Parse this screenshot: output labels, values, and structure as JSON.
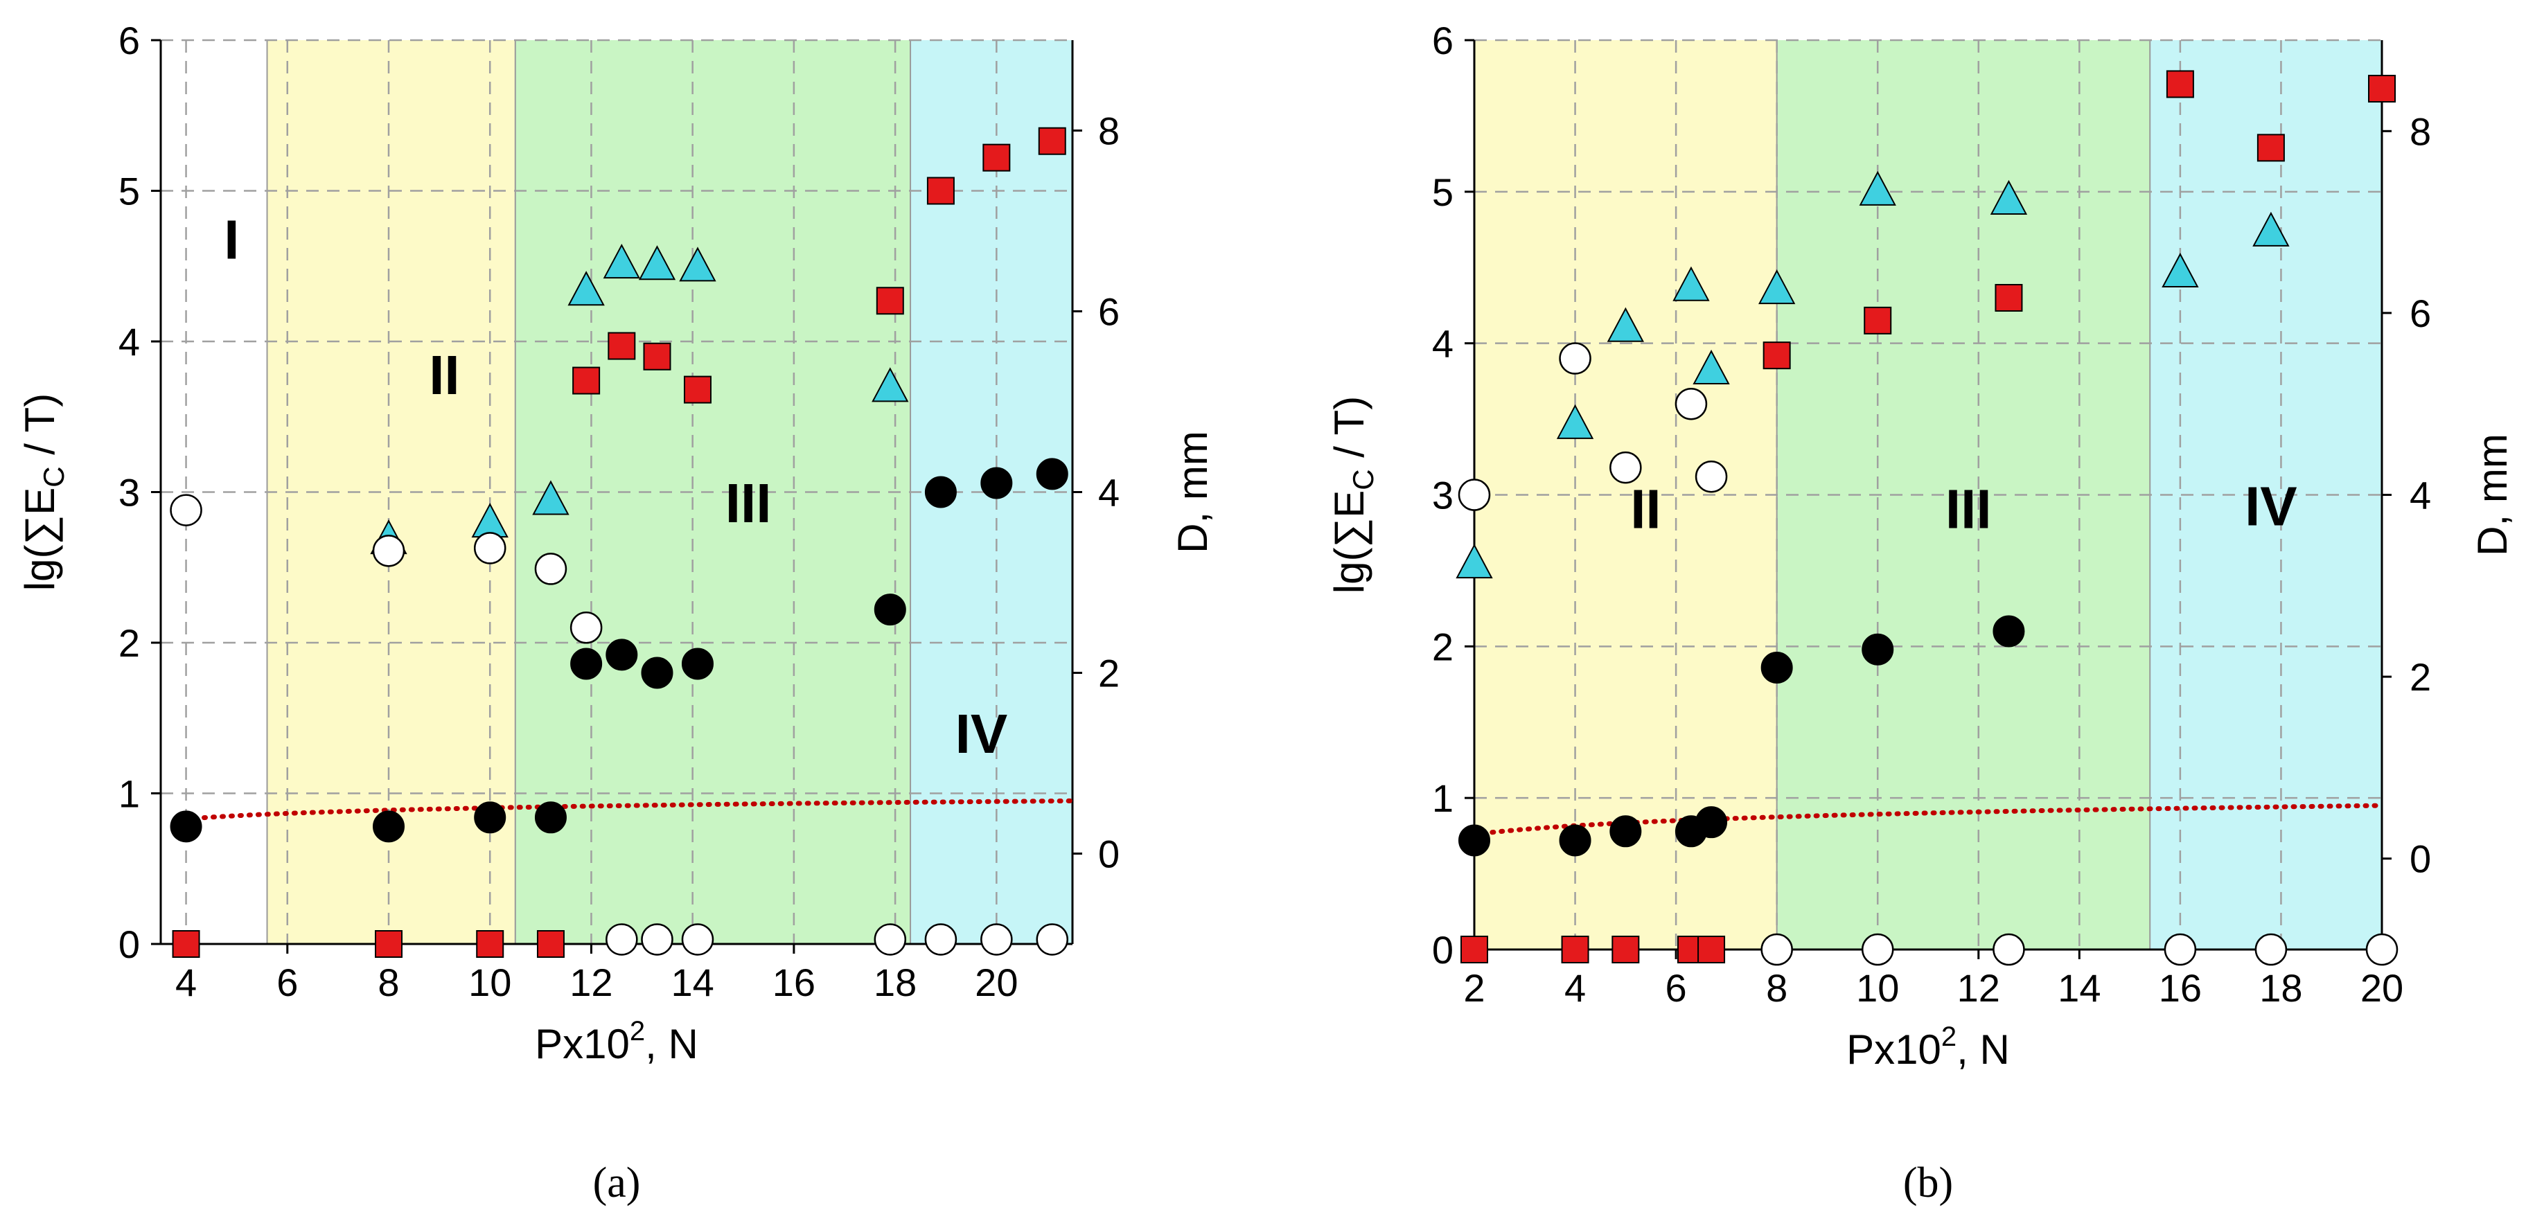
{
  "colors": {
    "zone_yellow": "#fdfac8",
    "zone_green": "#c9f5c4",
    "zone_cyan": "#c6f5f7",
    "square": "#e41a1c",
    "triangle": "#3fd0e0",
    "circle_filled": "#000000",
    "circle_open": "#ffffff",
    "trend": "#c00000"
  },
  "chart_data": [
    {
      "caption": "(a)",
      "type": "scatter",
      "xlabel": "Px10², N",
      "xlabel_base": "Px10",
      "xlabel_sup": "2",
      "xlabel_tail": ", N",
      "ylabel_left": "lg(∑E_C / T)",
      "ylabel_right": "D, mm",
      "xlim": [
        3.5,
        21.5
      ],
      "xticks": [
        4,
        6,
        8,
        10,
        12,
        14,
        16,
        18,
        20
      ],
      "ylim_left": [
        0,
        6
      ],
      "yticks_left": [
        0,
        1,
        2,
        3,
        4,
        5,
        6
      ],
      "ylim_right": [
        -1,
        9
      ],
      "yticks_right": [
        0,
        2,
        4,
        6,
        8
      ],
      "grid": true,
      "zones": [
        {
          "label": "I",
          "from": 3.5,
          "to": 5.6,
          "color": "none",
          "label_x": 4.9,
          "label_y": 4.55
        },
        {
          "label": "II",
          "from": 5.6,
          "to": 10.5,
          "color": "yellow",
          "label_x": 9.1,
          "label_y": 3.65
        },
        {
          "label": "III",
          "from": 10.5,
          "to": 18.3,
          "color": "green",
          "label_x": 15.1,
          "label_y": 2.8
        },
        {
          "label": "IV",
          "from": 18.3,
          "to": 21.5,
          "color": "cyan",
          "label_x": 19.7,
          "label_y": 1.27
        }
      ],
      "series": [
        {
          "marker": "square",
          "axis": "left",
          "x": [
            4,
            8,
            10,
            11.2,
            11.9,
            12.6,
            13.3,
            14.1,
            17.9,
            18.9,
            20,
            21.1
          ],
          "y": [
            0,
            0,
            0,
            0,
            3.74,
            3.97,
            3.9,
            3.68,
            4.27,
            5.0,
            5.22,
            5.33
          ]
        },
        {
          "marker": "triangle",
          "axis": "left",
          "x": [
            8,
            10,
            11.2,
            11.9,
            12.6,
            13.3,
            14.1,
            17.9
          ],
          "y": [
            2.68,
            2.79,
            2.94,
            4.33,
            4.51,
            4.5,
            4.49,
            3.69
          ]
        },
        {
          "marker": "circle-filled",
          "axis": "right",
          "x": [
            4,
            8,
            10,
            11.2,
            11.9,
            12.6,
            13.3,
            14.1,
            17.9,
            18.9,
            20,
            21.1
          ],
          "y": [
            0.3,
            0.3,
            0.4,
            0.4,
            2.1,
            2.2,
            2.0,
            2.1,
            2.7,
            4.0,
            4.1,
            4.2
          ]
        },
        {
          "marker": "circle-open",
          "axis": "right",
          "x": [
            4,
            8,
            10,
            11.2,
            11.9,
            12.6,
            13.3,
            14.1,
            17.9,
            18.9,
            20,
            21.1
          ],
          "y": [
            3.8,
            3.35,
            3.38,
            3.15,
            2.5,
            -0.95,
            -0.95,
            -0.95,
            -0.95,
            -0.95,
            -0.95,
            -0.95
          ]
        }
      ],
      "trend": {
        "axis": "left",
        "x": [
          4,
          21.5
        ],
        "y": [
          0.83,
          0.95
        ]
      }
    },
    {
      "caption": "(b)",
      "type": "scatter",
      "xlabel": "Px10², N",
      "xlabel_base": "Px10",
      "xlabel_sup": "2",
      "xlabel_tail": ", N",
      "ylabel_left": "lg(∑E_C / T)",
      "ylabel_right": "D, mm",
      "xlim": [
        2,
        20
      ],
      "xticks": [
        2,
        4,
        6,
        8,
        10,
        12,
        14,
        16,
        18,
        20
      ],
      "ylim_left": [
        0,
        6
      ],
      "yticks_left": [
        0,
        1,
        2,
        3,
        4,
        5,
        6
      ],
      "ylim_right": [
        -1,
        9
      ],
      "yticks_right": [
        0,
        2,
        4,
        6,
        8
      ],
      "grid": true,
      "zones": [
        {
          "label": "II",
          "from": 2,
          "to": 8,
          "color": "yellow",
          "label_x": 5.4,
          "label_y": 2.78
        },
        {
          "label": "III",
          "from": 8,
          "to": 15.4,
          "color": "green",
          "label_x": 11.8,
          "label_y": 2.78
        },
        {
          "label": "IV",
          "from": 15.4,
          "to": 20,
          "color": "cyan",
          "label_x": 17.8,
          "label_y": 2.8
        }
      ],
      "series": [
        {
          "marker": "square",
          "axis": "left",
          "x": [
            2,
            4,
            5,
            6.3,
            6.7,
            8,
            10,
            12.6,
            16,
            17.8,
            20
          ],
          "y": [
            0,
            0,
            0,
            0,
            0,
            3.92,
            4.15,
            4.3,
            5.71,
            5.29,
            5.68
          ]
        },
        {
          "marker": "triangle",
          "axis": "left",
          "x": [
            2,
            4,
            5,
            6.3,
            6.7,
            8,
            10,
            12.6,
            16,
            17.8
          ],
          "y": [
            2.54,
            3.46,
            4.1,
            4.37,
            3.82,
            4.35,
            5.0,
            4.94,
            4.46,
            4.73
          ]
        },
        {
          "marker": "circle-filled",
          "axis": "right",
          "x": [
            2,
            4,
            5,
            6.3,
            6.7,
            8,
            10,
            12.6
          ],
          "y": [
            0.2,
            0.2,
            0.3,
            0.3,
            0.4,
            2.1,
            2.3,
            2.5
          ]
        },
        {
          "marker": "circle-open",
          "axis": "right",
          "x": [
            2,
            4,
            5,
            6.3,
            6.7,
            8,
            10,
            12.6,
            16,
            17.8,
            20
          ],
          "y": [
            4.0,
            5.5,
            4.3,
            5.0,
            4.2,
            -1.0,
            -1.0,
            -1.0,
            -1.0,
            -1.0,
            -1.0
          ]
        }
      ],
      "trend": {
        "axis": "left",
        "x": [
          2,
          20
        ],
        "y": [
          0.76,
          0.95
        ]
      }
    }
  ]
}
